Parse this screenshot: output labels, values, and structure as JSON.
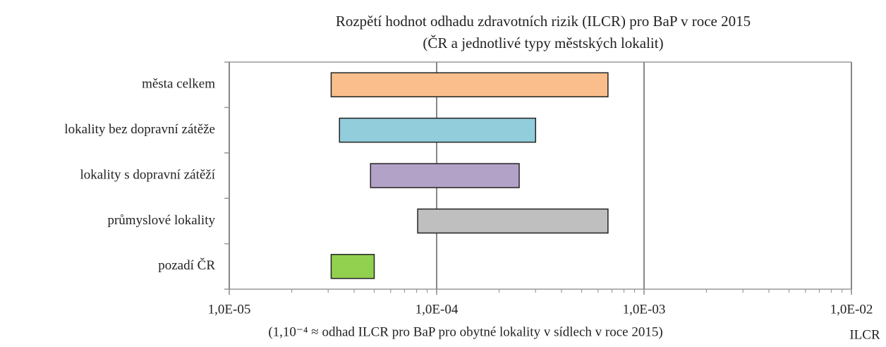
{
  "chart_data": {
    "type": "floating-bar",
    "title": "Rozpětí hodnot odhadu zdravotních rizik (ILCR) pro BaP v roce 2015",
    "subtitle": "(ČR a jednotlivé typy městských lokalit)",
    "categories": [
      "města celkem",
      "lokality bez dopravní zátěže",
      "lokality s dopravní zátěží",
      "průmyslové lokality",
      "pozadí ČR"
    ],
    "ranges": [
      [
        3.1e-05,
        0.00067
      ],
      [
        3.4e-05,
        0.0003
      ],
      [
        4.8e-05,
        0.00025
      ],
      [
        8.1e-05,
        0.00067
      ],
      [
        3.1e-05,
        5e-05
      ]
    ],
    "colors": [
      "#f9be8c",
      "#92cddc",
      "#b3a2c7",
      "#bfbfbf",
      "#92d050"
    ],
    "xscale": "log",
    "xlim": [
      1e-05,
      0.01
    ],
    "xticks": [
      {
        "value": 1e-05,
        "label": "1,0E-05"
      },
      {
        "value": 0.0001,
        "label": "1,0E-04"
      },
      {
        "value": 0.001,
        "label": "1,0E-03"
      },
      {
        "value": 0.01,
        "label": "1,0E-02"
      }
    ],
    "minor_xticks": [
      2e-05,
      3e-05,
      4e-05,
      5e-05,
      6e-05,
      7e-05,
      8e-05,
      9e-05,
      0.0002,
      0.0003,
      0.0004,
      0.0005,
      0.0006,
      0.0007,
      0.0008,
      0.0009,
      0.002,
      0.003,
      0.004,
      0.005,
      0.006,
      0.007,
      0.008,
      0.009
    ],
    "grid": true,
    "note": "(1,10⁻⁴ ≈ odhad ILCR pro BaP pro obytné lokality v sídlech v roce 2015)",
    "xlabel": "ILCR"
  }
}
